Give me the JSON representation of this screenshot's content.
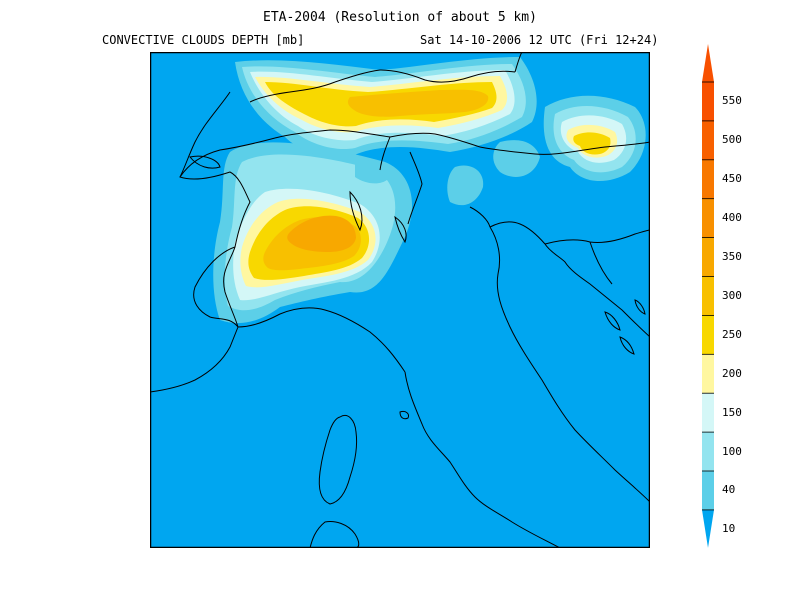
{
  "title": "ETA-2004 (Resolution of about 5 km)",
  "subtitle_left": "CONVECTIVE CLOUDS DEPTH [mb]",
  "subtitle_right": "Sat 14-10-2006 12 UTC (Fri 12+24)",
  "colors": {
    "background_sea": "#00a6f0",
    "frame": "#000000",
    "coastline": "#000000"
  },
  "legend": {
    "levels": [
      "10",
      "40",
      "100",
      "150",
      "200",
      "250",
      "300",
      "350",
      "400",
      "450",
      "500",
      "550"
    ],
    "colors": [
      "#00a6f0",
      "#5ccfe8",
      "#93e4ef",
      "#d4f7f7",
      "#fff7a0",
      "#f8d800",
      "#f8c000",
      "#f8a800",
      "#f89000",
      "#f87800",
      "#f86000",
      "#f85000",
      "#f85000"
    ]
  }
}
